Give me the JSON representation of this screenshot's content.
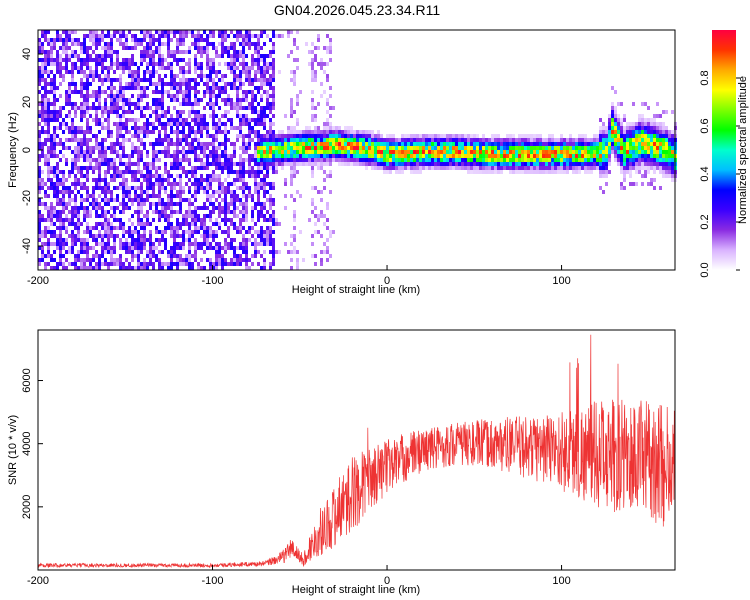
{
  "chart_data": [
    {
      "type": "heatmap",
      "title": "GN04.2026.045.23.34.R11",
      "xlabel": "Height of straight line (km)",
      "ylabel": "Frequency (Hz)",
      "xlim": [
        -200,
        165
      ],
      "ylim": [
        -50,
        50
      ],
      "xticks": [
        "-200",
        "-100",
        "0",
        "100"
      ],
      "yticks": [
        "-40",
        "-20",
        "0",
        "20",
        "40"
      ],
      "colorbar": {
        "label": "Normalized spectral amplitude",
        "range": [
          0,
          1
        ],
        "ticks": [
          "0.0",
          "0.2",
          "0.4",
          "0.6",
          "0.8"
        ],
        "colors": [
          "#ffffff",
          "#d9b3ff",
          "#8a2be2",
          "#3b00ff",
          "#0000ff",
          "#00bfff",
          "#00ffcc",
          "#00ff00",
          "#7fff00",
          "#ffff00",
          "#ffaa00",
          "#ff3300",
          "#ff0040"
        ]
      },
      "features": {
        "noise_region_km": [
          -200,
          -65
        ],
        "sparse_noise_km": [
          -65,
          -30
        ],
        "signal_ridge": {
          "x": [
            -75,
            -60,
            -50,
            -40,
            -30,
            -20,
            -10,
            0,
            20,
            40,
            60,
            80,
            100,
            115,
            125,
            128,
            135,
            145,
            155,
            165
          ],
          "freq": [
            0,
            1,
            2,
            2,
            3,
            2,
            1,
            -1,
            0,
            0,
            -1,
            -1,
            -1,
            -1,
            0,
            10,
            0,
            4,
            2,
            -2
          ]
        }
      }
    },
    {
      "type": "line",
      "xlabel": "Height of straight line (km)",
      "ylabel": "SNR (10 * v/v)",
      "xlim": [
        -200,
        165
      ],
      "ylim": [
        0,
        7600
      ],
      "xticks": [
        "-200",
        "-100",
        "0",
        "100"
      ],
      "yticks": [
        "2000",
        "4000",
        "6000"
      ],
      "series": [
        {
          "name": "SNR",
          "color": "#ee3333",
          "envelope": {
            "x": [
              -200,
              -150,
              -100,
              -70,
              -60,
              -55,
              -52,
              -48,
              -45,
              -40,
              -30,
              -20,
              -10,
              0,
              20,
              40,
              60,
              80,
              100,
              110,
              120,
              130,
              140,
              150,
              160,
              165
            ],
            "center": [
              150,
              150,
              150,
              200,
              400,
              700,
              550,
              300,
              600,
              1100,
              1700,
              2400,
              2900,
              3300,
              3800,
              4000,
              4000,
              3900,
              3800,
              3700,
              3700,
              3600,
              3600,
              3500,
              3300,
              3200
            ],
            "amplitude": [
              60,
              60,
              60,
              80,
              200,
              350,
              250,
              200,
              400,
              700,
              1000,
              1200,
              1000,
              900,
              700,
              700,
              800,
              1000,
              1300,
              1500,
              1700,
              1800,
              1800,
              1900,
              2000,
              2000
            ]
          }
        }
      ]
    }
  ]
}
